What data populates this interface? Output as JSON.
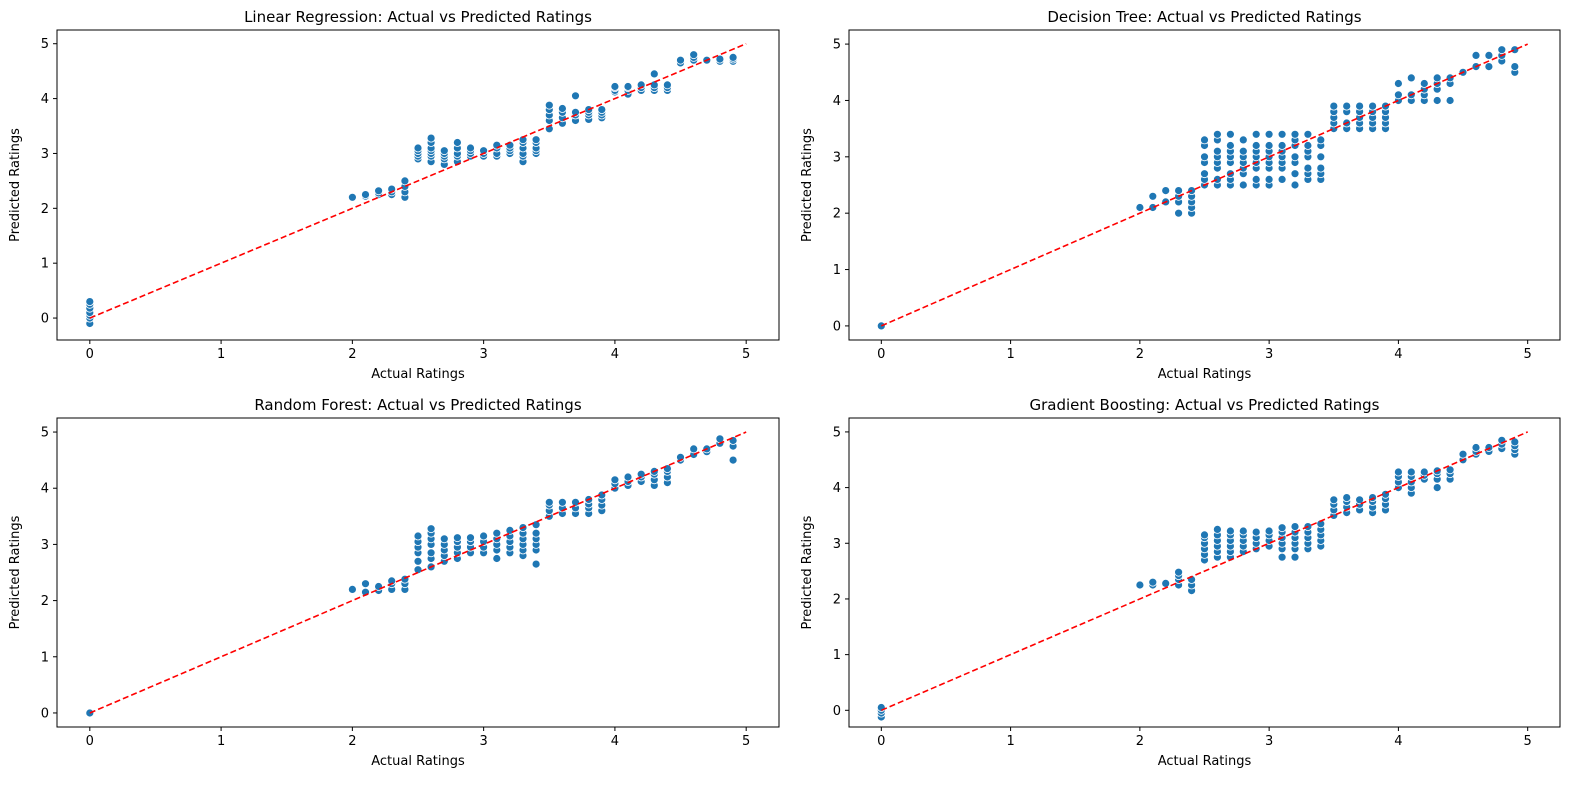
{
  "colors": {
    "points": "#1f77b4",
    "identity_line": "#ff0000",
    "frame": "#000000"
  },
  "chart_data": [
    {
      "type": "scatter",
      "title": "Linear Regression: Actual vs Predicted Ratings",
      "xlabel": "Actual Ratings",
      "ylabel": "Predicted Ratings",
      "xlim": [
        -0.25,
        5.25
      ],
      "ylim": [
        -0.4,
        5.25
      ],
      "xticks": [
        "0",
        "1",
        "2",
        "3",
        "4",
        "5"
      ],
      "yticks": [
        "0",
        "1",
        "2",
        "3",
        "4",
        "5"
      ],
      "identity_line": {
        "x": [
          0,
          5
        ],
        "y": [
          0,
          5
        ]
      },
      "groups": [
        {
          "x": 0.0,
          "y": [
            -0.1,
            0.0,
            0.05,
            0.1,
            0.18,
            0.25,
            0.3
          ]
        },
        {
          "x": 2.0,
          "y": [
            2.2
          ]
        },
        {
          "x": 2.1,
          "y": [
            2.22,
            2.25
          ]
        },
        {
          "x": 2.2,
          "y": [
            2.25,
            2.28,
            2.32
          ]
        },
        {
          "x": 2.3,
          "y": [
            2.25,
            2.3,
            2.35
          ]
        },
        {
          "x": 2.4,
          "y": [
            2.2,
            2.3,
            2.4,
            2.5
          ]
        },
        {
          "x": 2.5,
          "y": [
            2.9,
            2.95,
            3.0,
            3.05,
            3.1
          ]
        },
        {
          "x": 2.6,
          "y": [
            2.85,
            2.95,
            3.0,
            3.05,
            3.1,
            3.2,
            3.28
          ]
        },
        {
          "x": 2.7,
          "y": [
            2.8,
            2.9,
            2.95,
            3.0,
            3.05
          ]
        },
        {
          "x": 2.8,
          "y": [
            2.85,
            2.95,
            3.0,
            3.1,
            3.2
          ]
        },
        {
          "x": 2.9,
          "y": [
            2.95,
            3.0,
            3.05,
            3.1
          ]
        },
        {
          "x": 3.0,
          "y": [
            2.95,
            3.0,
            3.05
          ]
        },
        {
          "x": 3.1,
          "y": [
            2.95,
            3.0,
            3.1,
            3.15
          ]
        },
        {
          "x": 3.2,
          "y": [
            3.0,
            3.05,
            3.1,
            3.15
          ]
        },
        {
          "x": 3.3,
          "y": [
            2.85,
            2.95,
            3.0,
            3.1,
            3.2,
            3.25
          ]
        },
        {
          "x": 3.4,
          "y": [
            3.0,
            3.05,
            3.1,
            3.2,
            3.25
          ]
        },
        {
          "x": 3.5,
          "y": [
            3.45,
            3.6,
            3.7,
            3.8,
            3.88
          ]
        },
        {
          "x": 3.6,
          "y": [
            3.55,
            3.65,
            3.75,
            3.82
          ]
        },
        {
          "x": 3.7,
          "y": [
            3.6,
            3.7,
            3.75,
            4.05
          ]
        },
        {
          "x": 3.8,
          "y": [
            3.62,
            3.7,
            3.75,
            3.8
          ]
        },
        {
          "x": 3.9,
          "y": [
            3.65,
            3.7,
            3.75,
            3.8
          ]
        },
        {
          "x": 4.0,
          "y": [
            4.12,
            4.15,
            4.2,
            4.22
          ]
        },
        {
          "x": 4.1,
          "y": [
            4.08,
            4.15,
            4.2,
            4.22
          ]
        },
        {
          "x": 4.2,
          "y": [
            4.15,
            4.2,
            4.25
          ]
        },
        {
          "x": 4.3,
          "y": [
            4.15,
            4.2,
            4.25,
            4.45
          ]
        },
        {
          "x": 4.4,
          "y": [
            4.15,
            4.2,
            4.25
          ]
        },
        {
          "x": 4.5,
          "y": [
            4.65,
            4.7
          ]
        },
        {
          "x": 4.6,
          "y": [
            4.7,
            4.75,
            4.8
          ]
        },
        {
          "x": 4.7,
          "y": [
            4.7
          ]
        },
        {
          "x": 4.8,
          "y": [
            4.68,
            4.72
          ]
        },
        {
          "x": 4.9,
          "y": [
            4.68,
            4.72,
            4.75
          ]
        }
      ]
    },
    {
      "type": "scatter",
      "title": "Decision Tree: Actual vs Predicted Ratings",
      "xlabel": "Actual Ratings",
      "ylabel": "Predicted Ratings",
      "xlim": [
        -0.25,
        5.25
      ],
      "ylim": [
        -0.25,
        5.25
      ],
      "xticks": [
        "0",
        "1",
        "2",
        "3",
        "4",
        "5"
      ],
      "yticks": [
        "0",
        "1",
        "2",
        "3",
        "4",
        "5"
      ],
      "identity_line": {
        "x": [
          0,
          5
        ],
        "y": [
          0,
          5
        ]
      },
      "groups": [
        {
          "x": 0.0,
          "y": [
            0.0
          ]
        },
        {
          "x": 2.0,
          "y": [
            2.1
          ]
        },
        {
          "x": 2.1,
          "y": [
            2.1,
            2.3
          ]
        },
        {
          "x": 2.2,
          "y": [
            2.2,
            2.4
          ]
        },
        {
          "x": 2.3,
          "y": [
            2.0,
            2.2,
            2.3,
            2.4
          ]
        },
        {
          "x": 2.4,
          "y": [
            2.0,
            2.1,
            2.2,
            2.3,
            2.4
          ]
        },
        {
          "x": 2.5,
          "y": [
            2.5,
            2.6,
            2.7,
            2.9,
            3.0,
            3.2,
            3.3
          ]
        },
        {
          "x": 2.6,
          "y": [
            2.5,
            2.6,
            2.8,
            2.9,
            3.0,
            3.1,
            3.3,
            3.4
          ]
        },
        {
          "x": 2.7,
          "y": [
            2.5,
            2.6,
            2.7,
            2.9,
            3.0,
            3.1,
            3.2,
            3.4
          ]
        },
        {
          "x": 2.8,
          "y": [
            2.5,
            2.7,
            2.8,
            2.9,
            3.0,
            3.1,
            3.3
          ]
        },
        {
          "x": 2.9,
          "y": [
            2.5,
            2.6,
            2.8,
            2.9,
            3.0,
            3.1,
            3.2,
            3.4
          ]
        },
        {
          "x": 3.0,
          "y": [
            2.5,
            2.6,
            2.8,
            2.9,
            3.0,
            3.1,
            3.2,
            3.4
          ]
        },
        {
          "x": 3.1,
          "y": [
            2.6,
            2.8,
            2.9,
            3.0,
            3.1,
            3.2,
            3.4
          ]
        },
        {
          "x": 3.2,
          "y": [
            2.5,
            2.7,
            2.9,
            3.0,
            3.2,
            3.3,
            3.4
          ]
        },
        {
          "x": 3.3,
          "y": [
            2.6,
            2.7,
            2.8,
            3.0,
            3.1,
            3.2,
            3.4
          ]
        },
        {
          "x": 3.4,
          "y": [
            2.6,
            2.7,
            2.8,
            3.0,
            3.2,
            3.3
          ]
        },
        {
          "x": 3.5,
          "y": [
            3.5,
            3.6,
            3.7,
            3.8,
            3.9
          ]
        },
        {
          "x": 3.6,
          "y": [
            3.5,
            3.6,
            3.8,
            3.9
          ]
        },
        {
          "x": 3.7,
          "y": [
            3.5,
            3.6,
            3.7,
            3.8,
            3.9
          ]
        },
        {
          "x": 3.8,
          "y": [
            3.5,
            3.6,
            3.7,
            3.8,
            3.9
          ]
        },
        {
          "x": 3.9,
          "y": [
            3.5,
            3.6,
            3.7,
            3.8,
            3.9
          ]
        },
        {
          "x": 4.0,
          "y": [
            4.0,
            4.1,
            4.3
          ]
        },
        {
          "x": 4.1,
          "y": [
            4.0,
            4.1,
            4.4
          ]
        },
        {
          "x": 4.2,
          "y": [
            4.0,
            4.1,
            4.2,
            4.3
          ]
        },
        {
          "x": 4.3,
          "y": [
            4.0,
            4.2,
            4.3,
            4.4
          ]
        },
        {
          "x": 4.4,
          "y": [
            4.0,
            4.3,
            4.4
          ]
        },
        {
          "x": 4.5,
          "y": [
            4.5
          ]
        },
        {
          "x": 4.6,
          "y": [
            4.6,
            4.8
          ]
        },
        {
          "x": 4.7,
          "y": [
            4.6,
            4.8
          ]
        },
        {
          "x": 4.8,
          "y": [
            4.7,
            4.8,
            4.9
          ]
        },
        {
          "x": 4.9,
          "y": [
            4.5,
            4.6,
            4.9
          ]
        }
      ]
    },
    {
      "type": "scatter",
      "title": "Random Forest: Actual vs Predicted Ratings",
      "xlabel": "Actual Ratings",
      "ylabel": "Predicted Ratings",
      "xlim": [
        -0.25,
        5.25
      ],
      "ylim": [
        -0.25,
        5.25
      ],
      "xticks": [
        "0",
        "1",
        "2",
        "3",
        "4",
        "5"
      ],
      "yticks": [
        "0",
        "1",
        "2",
        "3",
        "4",
        "5"
      ],
      "identity_line": {
        "x": [
          0,
          5
        ],
        "y": [
          0,
          5
        ]
      },
      "groups": [
        {
          "x": 0.0,
          "y": [
            0.0
          ]
        },
        {
          "x": 2.0,
          "y": [
            2.2
          ]
        },
        {
          "x": 2.1,
          "y": [
            2.15,
            2.3
          ]
        },
        {
          "x": 2.2,
          "y": [
            2.18,
            2.25
          ]
        },
        {
          "x": 2.3,
          "y": [
            2.2,
            2.3,
            2.35
          ]
        },
        {
          "x": 2.4,
          "y": [
            2.2,
            2.3,
            2.38
          ]
        },
        {
          "x": 2.5,
          "y": [
            2.55,
            2.7,
            2.85,
            2.95,
            3.05,
            3.15
          ]
        },
        {
          "x": 2.6,
          "y": [
            2.6,
            2.75,
            2.85,
            3.0,
            3.1,
            3.2,
            3.28
          ]
        },
        {
          "x": 2.7,
          "y": [
            2.7,
            2.8,
            2.9,
            3.0,
            3.1
          ]
        },
        {
          "x": 2.8,
          "y": [
            2.75,
            2.85,
            2.95,
            3.05,
            3.12
          ]
        },
        {
          "x": 2.9,
          "y": [
            2.85,
            2.95,
            3.05,
            3.12
          ]
        },
        {
          "x": 3.0,
          "y": [
            2.85,
            2.95,
            3.05,
            3.15
          ]
        },
        {
          "x": 3.1,
          "y": [
            2.75,
            2.9,
            3.0,
            3.1,
            3.2
          ]
        },
        {
          "x": 3.2,
          "y": [
            2.85,
            2.95,
            3.05,
            3.15,
            3.25
          ]
        },
        {
          "x": 3.3,
          "y": [
            2.8,
            2.9,
            3.0,
            3.1,
            3.2,
            3.3
          ]
        },
        {
          "x": 3.4,
          "y": [
            2.65,
            2.9,
            3.0,
            3.1,
            3.2,
            3.35
          ]
        },
        {
          "x": 3.5,
          "y": [
            3.5,
            3.6,
            3.7,
            3.75
          ]
        },
        {
          "x": 3.6,
          "y": [
            3.55,
            3.65,
            3.75
          ]
        },
        {
          "x": 3.7,
          "y": [
            3.55,
            3.65,
            3.75
          ]
        },
        {
          "x": 3.8,
          "y": [
            3.55,
            3.65,
            3.72,
            3.8
          ]
        },
        {
          "x": 3.9,
          "y": [
            3.6,
            3.7,
            3.8,
            3.88
          ]
        },
        {
          "x": 4.0,
          "y": [
            4.0,
            4.08,
            4.15
          ]
        },
        {
          "x": 4.1,
          "y": [
            4.05,
            4.12,
            4.2
          ]
        },
        {
          "x": 4.2,
          "y": [
            4.12,
            4.2,
            4.25
          ]
        },
        {
          "x": 4.3,
          "y": [
            4.05,
            4.15,
            4.25,
            4.3
          ]
        },
        {
          "x": 4.4,
          "y": [
            4.1,
            4.2,
            4.3,
            4.35
          ]
        },
        {
          "x": 4.5,
          "y": [
            4.5,
            4.55
          ]
        },
        {
          "x": 4.6,
          "y": [
            4.6,
            4.7
          ]
        },
        {
          "x": 4.7,
          "y": [
            4.65,
            4.7
          ]
        },
        {
          "x": 4.8,
          "y": [
            4.8,
            4.88
          ]
        },
        {
          "x": 4.9,
          "y": [
            4.5,
            4.75,
            4.85
          ]
        }
      ]
    },
    {
      "type": "scatter",
      "title": "Gradient Boosting: Actual vs Predicted Ratings",
      "xlabel": "Actual Ratings",
      "ylabel": "Predicted Ratings",
      "xlim": [
        -0.25,
        5.25
      ],
      "ylim": [
        -0.3,
        5.25
      ],
      "xticks": [
        "0",
        "1",
        "2",
        "3",
        "4",
        "5"
      ],
      "yticks": [
        "0",
        "1",
        "2",
        "3",
        "4",
        "5"
      ],
      "identity_line": {
        "x": [
          0,
          5
        ],
        "y": [
          0,
          5
        ]
      },
      "groups": [
        {
          "x": 0.0,
          "y": [
            -0.12,
            -0.05,
            0.0,
            0.05
          ]
        },
        {
          "x": 2.0,
          "y": [
            2.25
          ]
        },
        {
          "x": 2.1,
          "y": [
            2.25,
            2.3
          ]
        },
        {
          "x": 2.2,
          "y": [
            2.28
          ]
        },
        {
          "x": 2.3,
          "y": [
            2.25,
            2.35,
            2.42,
            2.48
          ]
        },
        {
          "x": 2.4,
          "y": [
            2.15,
            2.25,
            2.35
          ]
        },
        {
          "x": 2.5,
          "y": [
            2.7,
            2.8,
            2.9,
            3.0,
            3.1,
            3.15
          ]
        },
        {
          "x": 2.6,
          "y": [
            2.75,
            2.85,
            2.95,
            3.05,
            3.15,
            3.25
          ]
        },
        {
          "x": 2.7,
          "y": [
            2.75,
            2.85,
            2.95,
            3.05,
            3.15,
            3.22
          ]
        },
        {
          "x": 2.8,
          "y": [
            2.85,
            2.95,
            3.05,
            3.15,
            3.22
          ]
        },
        {
          "x": 2.9,
          "y": [
            2.9,
            3.0,
            3.1,
            3.2
          ]
        },
        {
          "x": 3.0,
          "y": [
            2.95,
            3.05,
            3.15,
            3.22
          ]
        },
        {
          "x": 3.1,
          "y": [
            2.75,
            2.9,
            3.0,
            3.1,
            3.2,
            3.28
          ]
        },
        {
          "x": 3.2,
          "y": [
            2.75,
            2.9,
            3.0,
            3.1,
            3.2,
            3.3
          ]
        },
        {
          "x": 3.3,
          "y": [
            2.9,
            3.0,
            3.1,
            3.2,
            3.3
          ]
        },
        {
          "x": 3.4,
          "y": [
            2.95,
            3.05,
            3.15,
            3.25,
            3.35
          ]
        },
        {
          "x": 3.5,
          "y": [
            3.5,
            3.6,
            3.7,
            3.78
          ]
        },
        {
          "x": 3.6,
          "y": [
            3.55,
            3.65,
            3.75,
            3.82
          ]
        },
        {
          "x": 3.7,
          "y": [
            3.6,
            3.7,
            3.78
          ]
        },
        {
          "x": 3.8,
          "y": [
            3.55,
            3.65,
            3.75,
            3.82
          ]
        },
        {
          "x": 3.9,
          "y": [
            3.6,
            3.7,
            3.8,
            3.88
          ]
        },
        {
          "x": 4.0,
          "y": [
            4.0,
            4.1,
            4.2,
            4.28
          ]
        },
        {
          "x": 4.1,
          "y": [
            3.9,
            4.0,
            4.1,
            4.2,
            4.28
          ]
        },
        {
          "x": 4.2,
          "y": [
            4.15,
            4.22,
            4.28
          ]
        },
        {
          "x": 4.3,
          "y": [
            4.0,
            4.15,
            4.25,
            4.3
          ]
        },
        {
          "x": 4.4,
          "y": [
            4.15,
            4.25,
            4.32
          ]
        },
        {
          "x": 4.5,
          "y": [
            4.5,
            4.6
          ]
        },
        {
          "x": 4.6,
          "y": [
            4.6,
            4.65,
            4.72
          ]
        },
        {
          "x": 4.7,
          "y": [
            4.65,
            4.72
          ]
        },
        {
          "x": 4.8,
          "y": [
            4.7,
            4.78,
            4.85
          ]
        },
        {
          "x": 4.9,
          "y": [
            4.6,
            4.68,
            4.75,
            4.82
          ]
        }
      ]
    }
  ]
}
